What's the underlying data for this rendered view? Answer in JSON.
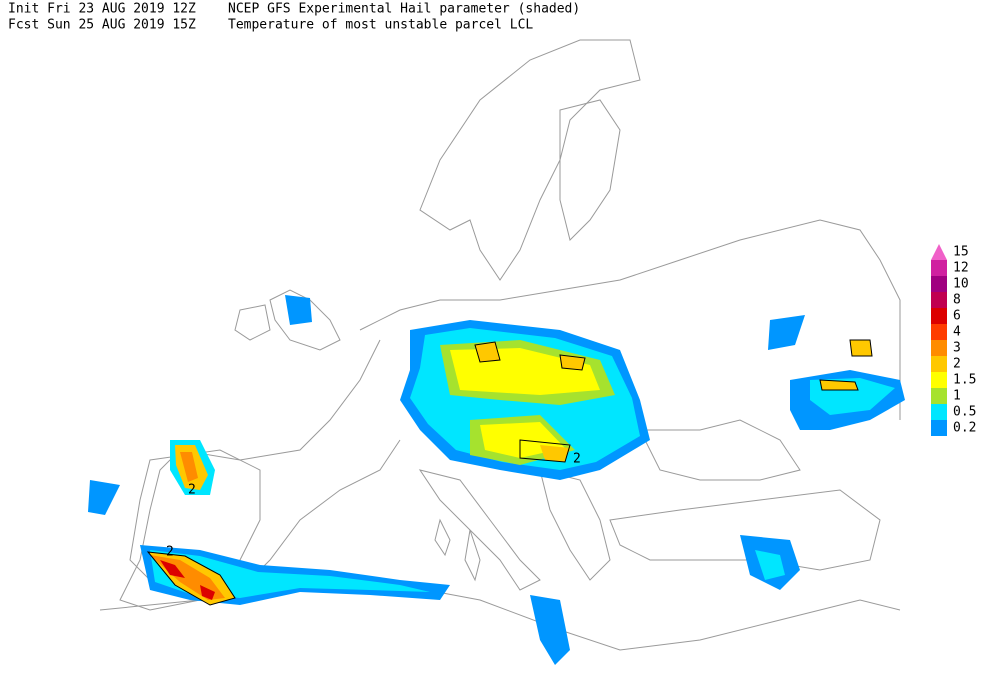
{
  "header": {
    "init": "Init  Fri 23 AUG 2019 12Z",
    "title": "NCEP GFS Experimental Hail parameter (shaded)",
    "valid": "Fcst Sun 25 AUG 2019 15Z",
    "subtitle": "Temperature of most unstable parcel LCL"
  },
  "legend": {
    "levels": [
      {
        "value": 0.2,
        "color": "#0096ff"
      },
      {
        "value": 0.5,
        "color": "#00e6ff"
      },
      {
        "value": 1,
        "color": "#a6e22e"
      },
      {
        "value": 1.5,
        "color": "#ffff00"
      },
      {
        "value": 2,
        "color": "#ffc800"
      },
      {
        "value": 3,
        "color": "#ff8c00"
      },
      {
        "value": 4,
        "color": "#ff3c00"
      },
      {
        "value": 6,
        "color": "#dc0000"
      },
      {
        "value": 8,
        "color": "#c00050"
      },
      {
        "value": 10,
        "color": "#a00080"
      },
      {
        "value": 12,
        "color": "#d020a0"
      },
      {
        "value": 15,
        "color": "#f060c8"
      }
    ]
  },
  "map": {
    "contour_labels": [
      2,
      2,
      2
    ]
  }
}
